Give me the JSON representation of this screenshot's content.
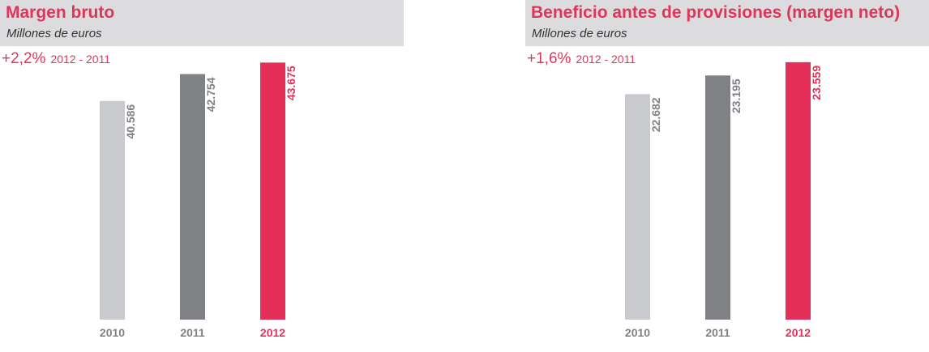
{
  "chart_data": [
    {
      "type": "bar",
      "title": "Margen bruto",
      "subtitle": "Millones de euros",
      "growth": "+2,2%",
      "growth_period": "2012 - 2011",
      "categories": [
        "2010",
        "2011",
        "2012"
      ],
      "values": [
        40586,
        42754,
        43675
      ],
      "value_labels": [
        "40.586",
        "42.754",
        "43.675"
      ],
      "colors": [
        "#c8cacd",
        "#808184",
        "#e43058"
      ],
      "label_colors": [
        "#808184",
        "#808184",
        "#e43058"
      ],
      "ylim": [
        23000,
        45000
      ]
    },
    {
      "type": "bar",
      "title": "Beneficio antes de provisiones (margen neto)",
      "subtitle": "Millones de euros",
      "growth": "+1,6%",
      "growth_period": "2012 - 2011",
      "categories": [
        "2010",
        "2011",
        "2012"
      ],
      "values": [
        22682,
        23195,
        23559
      ],
      "value_labels": [
        "22.682",
        "23.195",
        "23.559"
      ],
      "colors": [
        "#c8cacd",
        "#808184",
        "#e43058"
      ],
      "label_colors": [
        "#808184",
        "#808184",
        "#e43058"
      ],
      "ylim": [
        16500,
        24000
      ]
    }
  ]
}
